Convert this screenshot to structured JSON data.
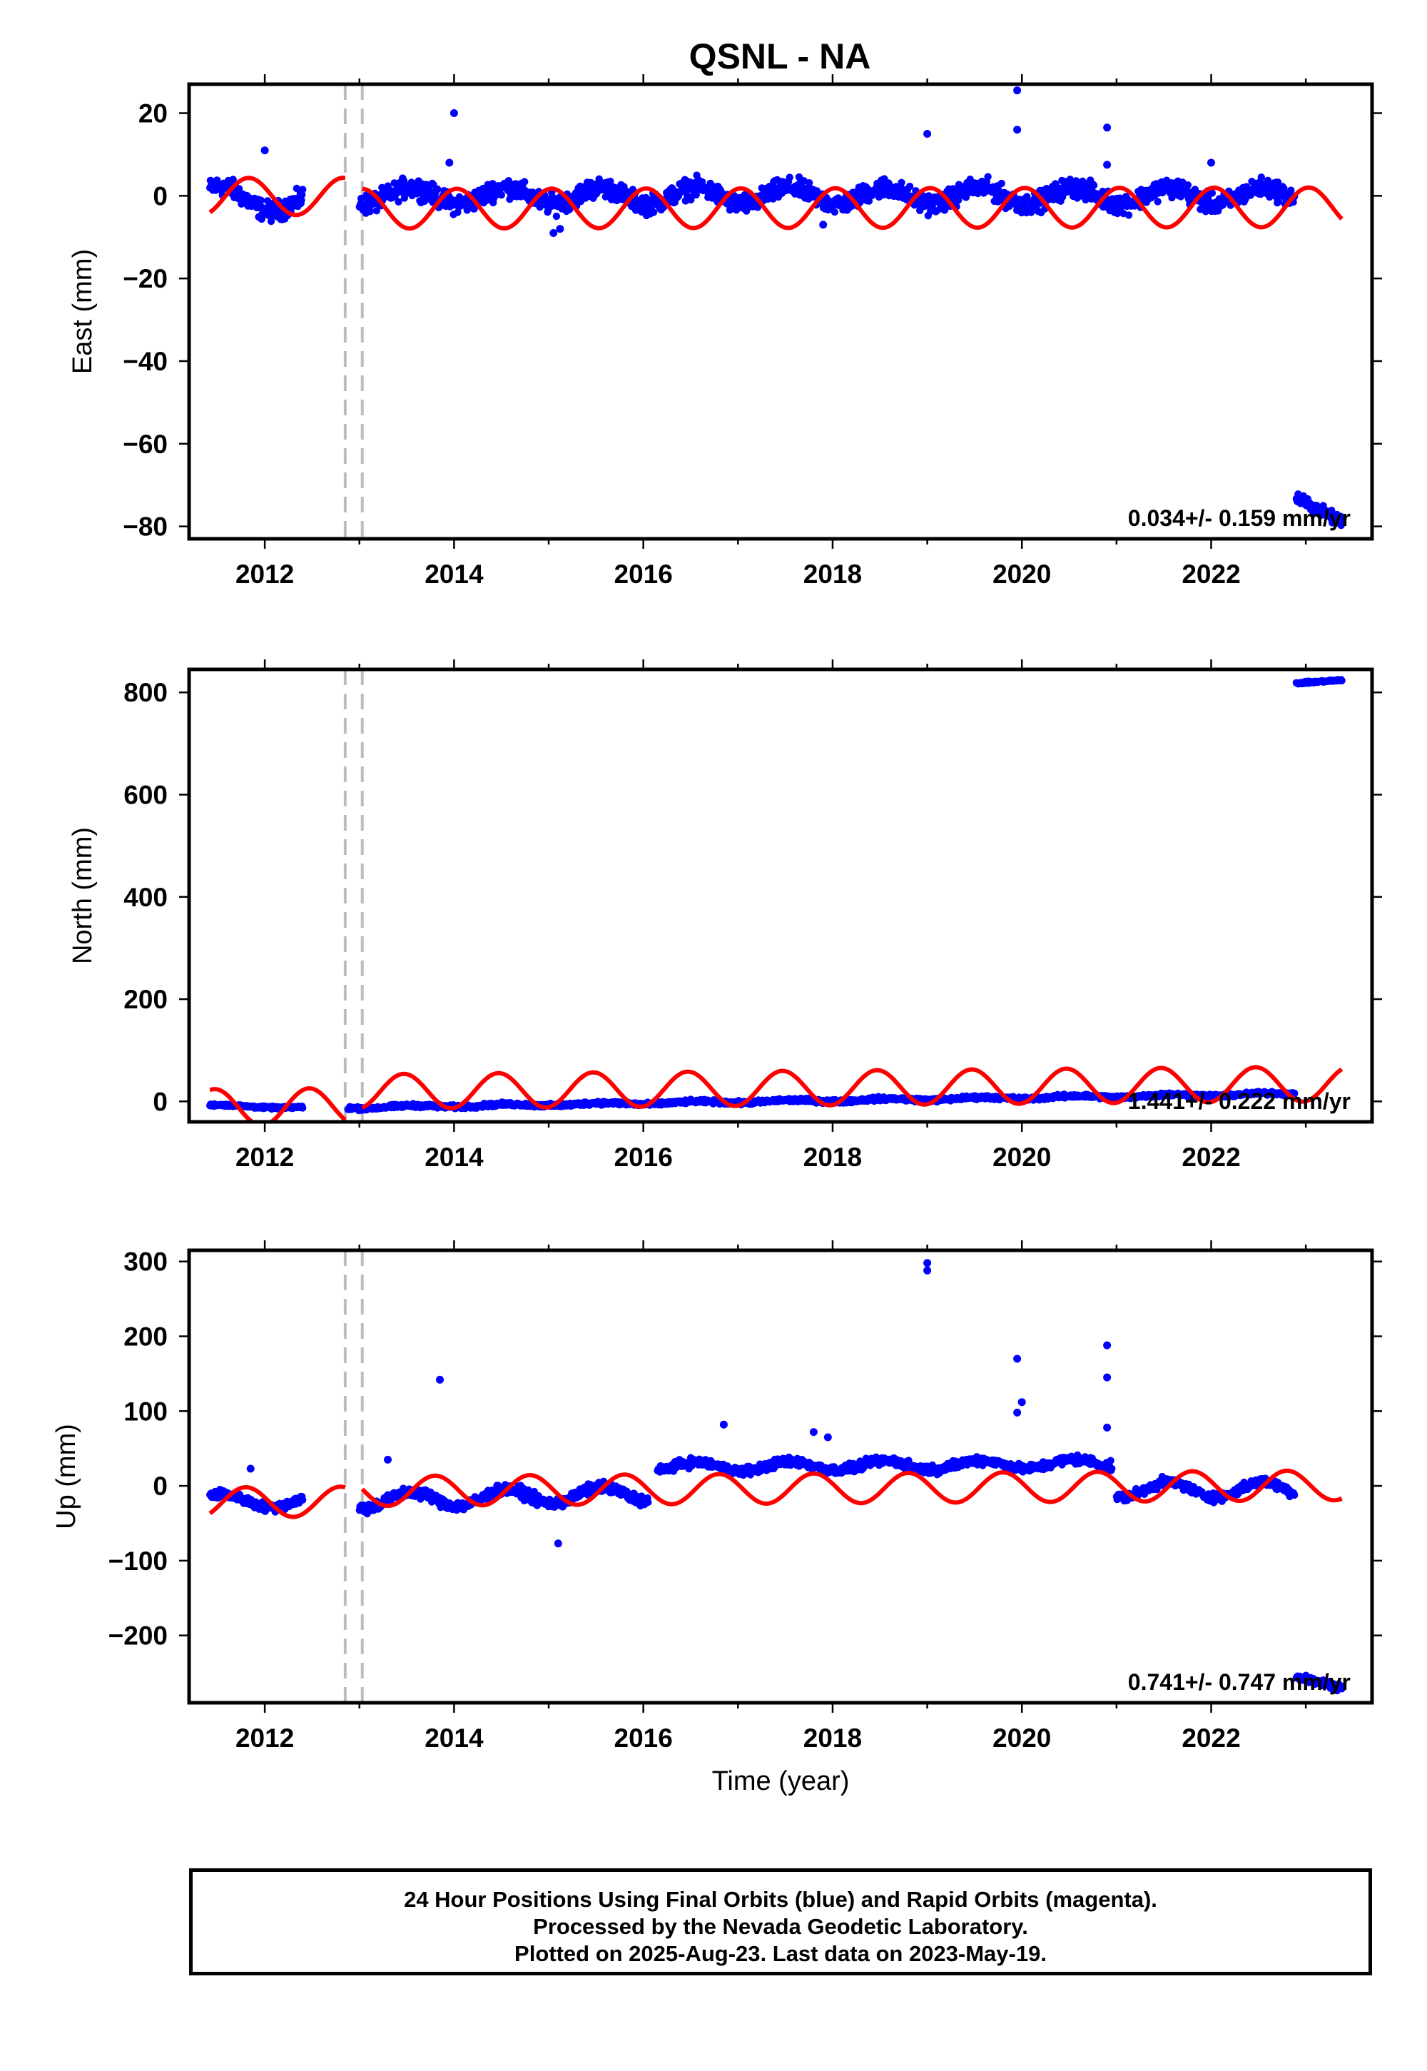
{
  "chart_data": {
    "type": "scatter",
    "title": "QSNL - NA",
    "xlabel": "Time (year)",
    "xlim": [
      2011.2,
      2023.7
    ],
    "x_ticks": [
      2012,
      2014,
      2016,
      2018,
      2020,
      2022
    ],
    "equipment_changes": [
      2012.85,
      2013.03
    ],
    "colors": {
      "final_orbits": "#0000ff",
      "model": "#ff0000",
      "equipment_change": "#bdbdbd"
    },
    "panels": [
      {
        "name": "East",
        "ylabel": "East (mm)",
        "ylim": [
          -83,
          27
        ],
        "y_ticks": [
          20,
          0,
          -20,
          -40,
          -60,
          -80
        ],
        "y_tick_labels": [
          "20",
          "0",
          "−20",
          "−40",
          "−60",
          "−80"
        ],
        "rate": "0.034+/- 0.159 mm/yr",
        "series": [
          {
            "kind": "points",
            "segments": [
              {
                "x_start": 2011.42,
                "x_end": 2012.4,
                "y_start": 0,
                "y_end": -2,
                "annual_amp": 2.5,
                "noise": 2.0
              },
              {
                "x_start": 2013.0,
                "x_end": 2022.88,
                "y_start": 0,
                "y_end": 0,
                "annual_amp": 2.0,
                "noise": 2.0
              },
              {
                "x_start": 2022.9,
                "x_end": 2023.38,
                "y_start": -73,
                "y_end": -79,
                "annual_amp": 0,
                "noise": 1.2
              }
            ],
            "outliers": [
              [
                2012.0,
                11
              ],
              [
                2013.95,
                8
              ],
              [
                2014.0,
                20
              ],
              [
                2015.05,
                -9
              ],
              [
                2015.12,
                -8
              ],
              [
                2017.9,
                -7
              ],
              [
                2019.0,
                15
              ],
              [
                2019.95,
                25.5
              ],
              [
                2019.95,
                16
              ],
              [
                2020.9,
                16.5
              ],
              [
                2020.9,
                7.5
              ],
              [
                2022.0,
                8
              ]
            ]
          },
          {
            "kind": "model",
            "segments": [
              {
                "x_start": 2011.42,
                "x_end": 2012.85,
                "offset": 0,
                "slope": 0.034,
                "amplitude": 4.5,
                "phase": 0.58
              },
              {
                "x_start": 2013.03,
                "x_end": 2023.38,
                "offset": -3,
                "slope": 0.034,
                "amplitude": 4.8,
                "phase": 0.78
              }
            ]
          }
        ]
      },
      {
        "name": "North",
        "ylabel": "North (mm)",
        "ylim": [
          -40,
          845
        ],
        "y_ticks": [
          800,
          600,
          400,
          200,
          0
        ],
        "y_tick_labels": [
          "800",
          "600",
          "400",
          "200",
          "0"
        ],
        "rate": "1.441+/- 0.222 mm/yr",
        "series": [
          {
            "kind": "points",
            "segments": [
              {
                "x_start": 2011.42,
                "x_end": 2012.4,
                "y_start": -8,
                "y_end": -12,
                "annual_amp": 1.5,
                "noise": 2.0
              },
              {
                "x_start": 2012.88,
                "x_end": 2022.88,
                "y_start": -12,
                "y_end": 15,
                "annual_amp": 2.0,
                "noise": 3.0
              },
              {
                "x_start": 2022.9,
                "x_end": 2023.38,
                "y_start": 818,
                "y_end": 824,
                "annual_amp": 0,
                "noise": 1.5
              }
            ],
            "outliers": []
          },
          {
            "kind": "model",
            "segments": [
              {
                "x_start": 2011.42,
                "x_end": 2012.85,
                "offset": -4,
                "slope": 1.441,
                "amplitude": 36,
                "phase": 0.22
              },
              {
                "x_start": 2013.03,
                "x_end": 2023.38,
                "offset": 25,
                "slope": 1.441,
                "amplitude": 34,
                "phase": 0.22
              }
            ]
          }
        ]
      },
      {
        "name": "Up",
        "ylabel": "Up (mm)",
        "ylim": [
          -290,
          315
        ],
        "y_ticks": [
          300,
          200,
          100,
          0,
          -100,
          -200
        ],
        "y_tick_labels": [
          "300",
          "200",
          "100",
          "0",
          "−100",
          "−200"
        ],
        "rate": "0.741+/- 0.747 mm/yr",
        "series": [
          {
            "kind": "points",
            "segments": [
              {
                "x_start": 2011.42,
                "x_end": 2012.4,
                "y_start": -18,
                "y_end": -22,
                "annual_amp": 8,
                "noise": 5
              },
              {
                "x_start": 2013.0,
                "x_end": 2016.05,
                "y_start": -20,
                "y_end": -10,
                "annual_amp": 10,
                "noise": 6
              },
              {
                "x_start": 2016.15,
                "x_end": 2020.95,
                "y_start": 25,
                "y_end": 30,
                "annual_amp": 6,
                "noise": 5
              },
              {
                "x_start": 2021.0,
                "x_end": 2022.88,
                "y_start": -5,
                "y_end": -5,
                "annual_amp": 10,
                "noise": 5
              },
              {
                "x_start": 2022.9,
                "x_end": 2023.38,
                "y_start": -255,
                "y_end": -270,
                "annual_amp": 0,
                "noise": 4
              }
            ],
            "outliers": [
              [
                2011.85,
                23
              ],
              [
                2013.3,
                35
              ],
              [
                2013.85,
                142
              ],
              [
                2015.1,
                -77
              ],
              [
                2016.85,
                82
              ],
              [
                2017.8,
                72
              ],
              [
                2017.95,
                65
              ],
              [
                2019.0,
                298
              ],
              [
                2019.0,
                288
              ],
              [
                2019.95,
                170
              ],
              [
                2019.95,
                98
              ],
              [
                2020.0,
                112
              ],
              [
                2020.9,
                188
              ],
              [
                2020.9,
                145
              ],
              [
                2020.9,
                78
              ]
            ]
          },
          {
            "kind": "model",
            "segments": [
              {
                "x_start": 2011.42,
                "x_end": 2012.85,
                "offset": -18,
                "slope": 0.741,
                "amplitude": 20,
                "phase": 0.55
              },
              {
                "x_start": 2013.03,
                "x_end": 2023.38,
                "offset": -4,
                "slope": 0.741,
                "amplitude": 20,
                "phase": 0.55
              }
            ]
          }
        ]
      }
    ]
  },
  "footer": {
    "line1": "24 Hour Positions Using Final Orbits (blue) and Rapid Orbits (magenta).",
    "line2": "Processed by the Nevada Geodetic Laboratory.",
    "line3": "Plotted on 2025-Aug-23. Last data on 2023-May-19."
  }
}
